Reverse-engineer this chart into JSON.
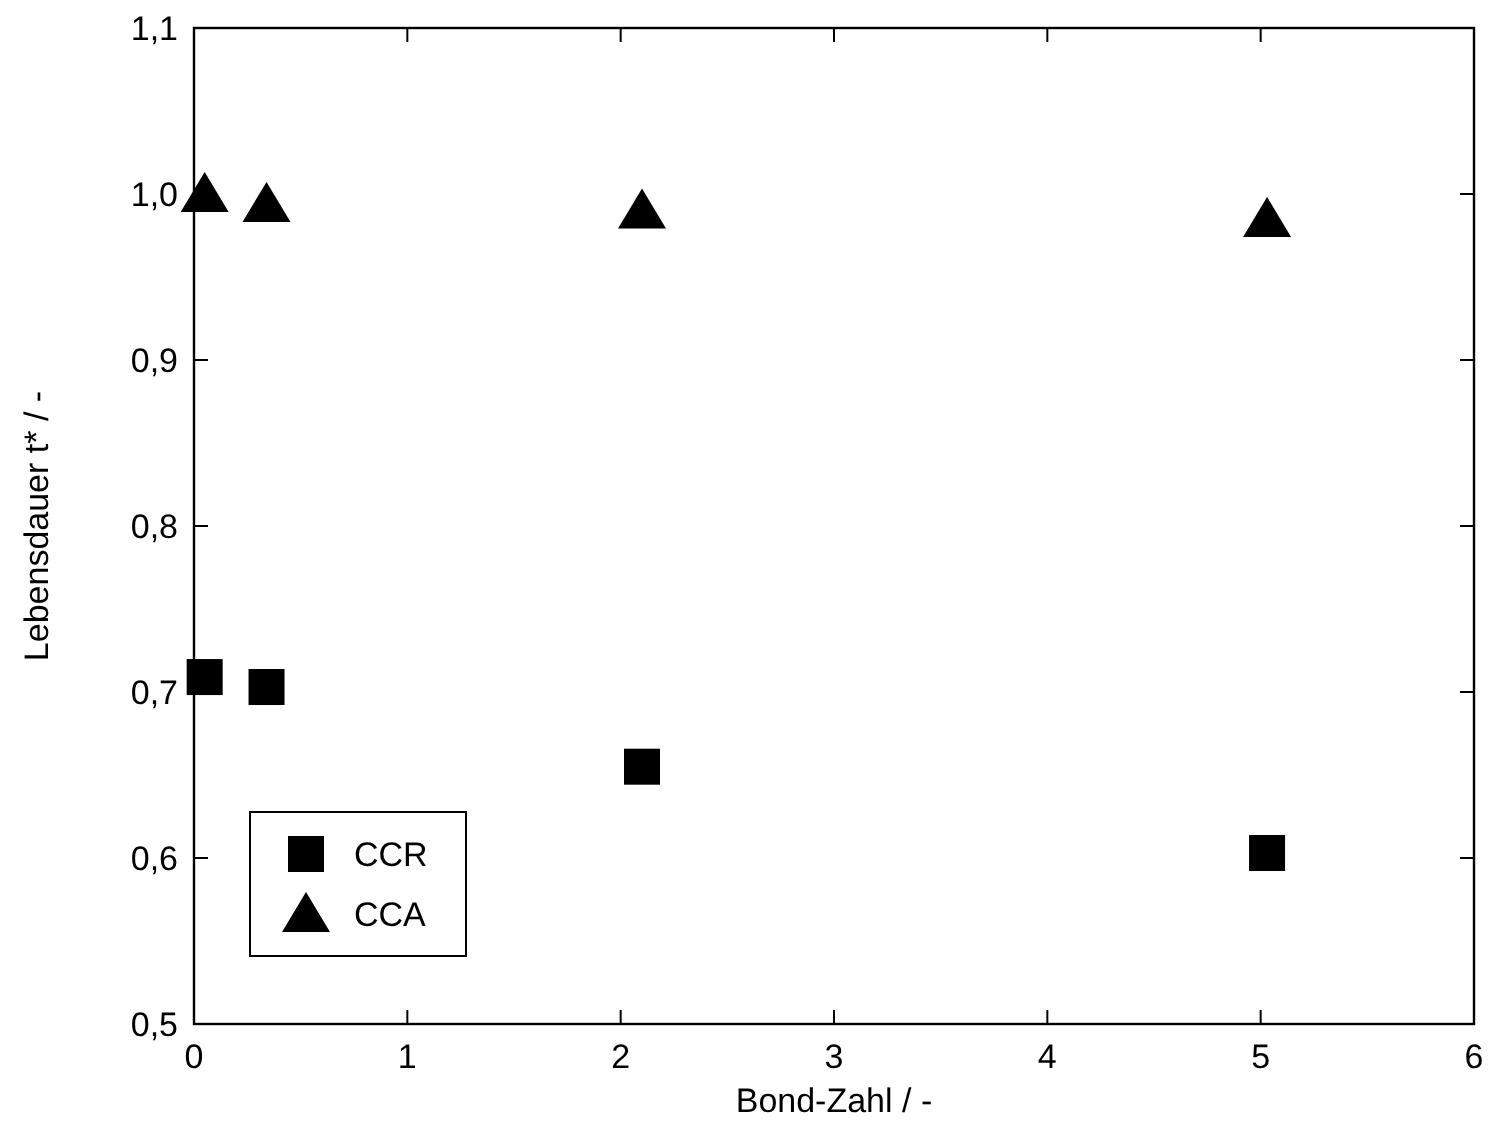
{
  "chart_data": {
    "type": "scatter",
    "xlabel": "Bond-Zahl  / -",
    "ylabel": "Lebensdauer t* / -",
    "xlim": [
      0,
      6
    ],
    "xticks": [
      0,
      1,
      2,
      3,
      4,
      5,
      6
    ],
    "ylim": [
      0.5,
      1.1
    ],
    "yticks": [
      {
        "value": 0.5,
        "label": "0,5"
      },
      {
        "value": 0.6,
        "label": "0,6"
      },
      {
        "value": 0.7,
        "label": "0,7"
      },
      {
        "value": 0.8,
        "label": "0,8"
      },
      {
        "value": 0.9,
        "label": "0,9"
      },
      {
        "value": 1.0,
        "label": "1,0"
      },
      {
        "value": 1.1,
        "label": "1,1"
      }
    ],
    "legend": "bottom left",
    "grid": false,
    "series": [
      {
        "name": "CCR",
        "color": "#000000",
        "marker": "square",
        "x": [
          0.05,
          0.34,
          2.1,
          5.03
        ],
        "values": [
          0.709,
          0.703,
          0.655,
          0.603
        ]
      },
      {
        "name": "CCA",
        "color": "#000000",
        "marker": "triangle",
        "x": [
          0.05,
          0.34,
          2.1,
          5.03
        ],
        "values": [
          1.0,
          0.994,
          0.99,
          0.985
        ]
      }
    ]
  }
}
